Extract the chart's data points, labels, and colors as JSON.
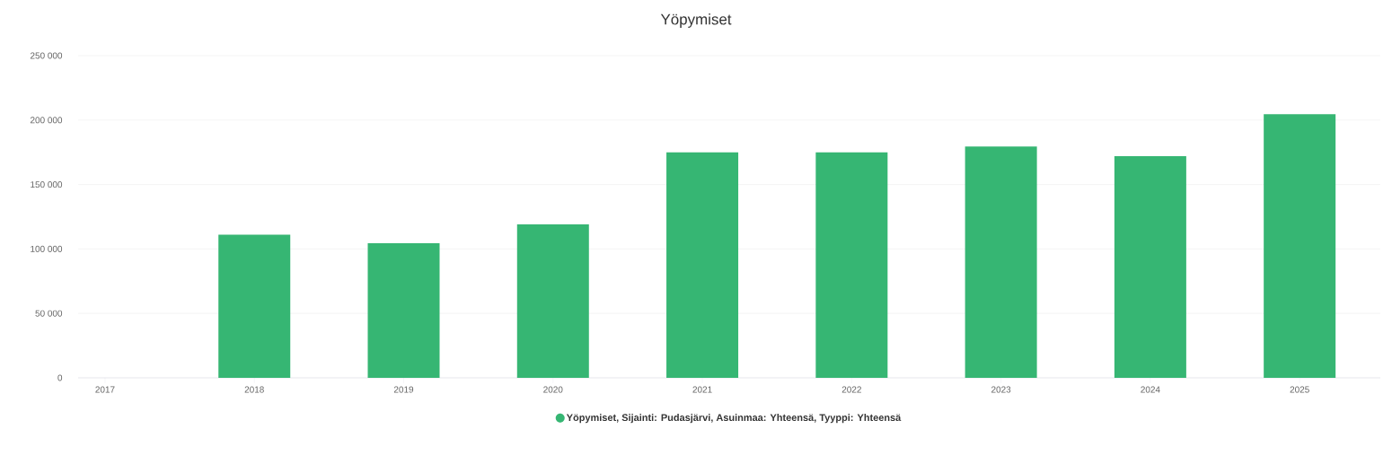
{
  "chart_data": {
    "type": "bar",
    "title": "Yöpymiset",
    "categories": [
      "2017",
      "2018",
      "2019",
      "2020",
      "2021",
      "2022",
      "2023",
      "2024",
      "2025"
    ],
    "series": [
      {
        "name": "Yöpymiset, Sijainti: Pudasjärvi, Asuinmaa: Yhteensä, Tyyppi: Yhteensä",
        "color": "#36b673",
        "values": [
          null,
          111000,
          104500,
          119000,
          175000,
          175000,
          179500,
          172000,
          204500
        ]
      }
    ],
    "ylim": [
      0,
      250000
    ],
    "yticks": [
      {
        "value": 0,
        "label": "0"
      },
      {
        "value": 50000,
        "label": "50 000"
      },
      {
        "value": 100000,
        "label": "100 000"
      },
      {
        "value": 150000,
        "label": "150 000"
      },
      {
        "value": 200000,
        "label": "200 000"
      },
      {
        "value": 250000,
        "label": "250 000"
      }
    ],
    "grid": "y",
    "legend": "bottom"
  }
}
